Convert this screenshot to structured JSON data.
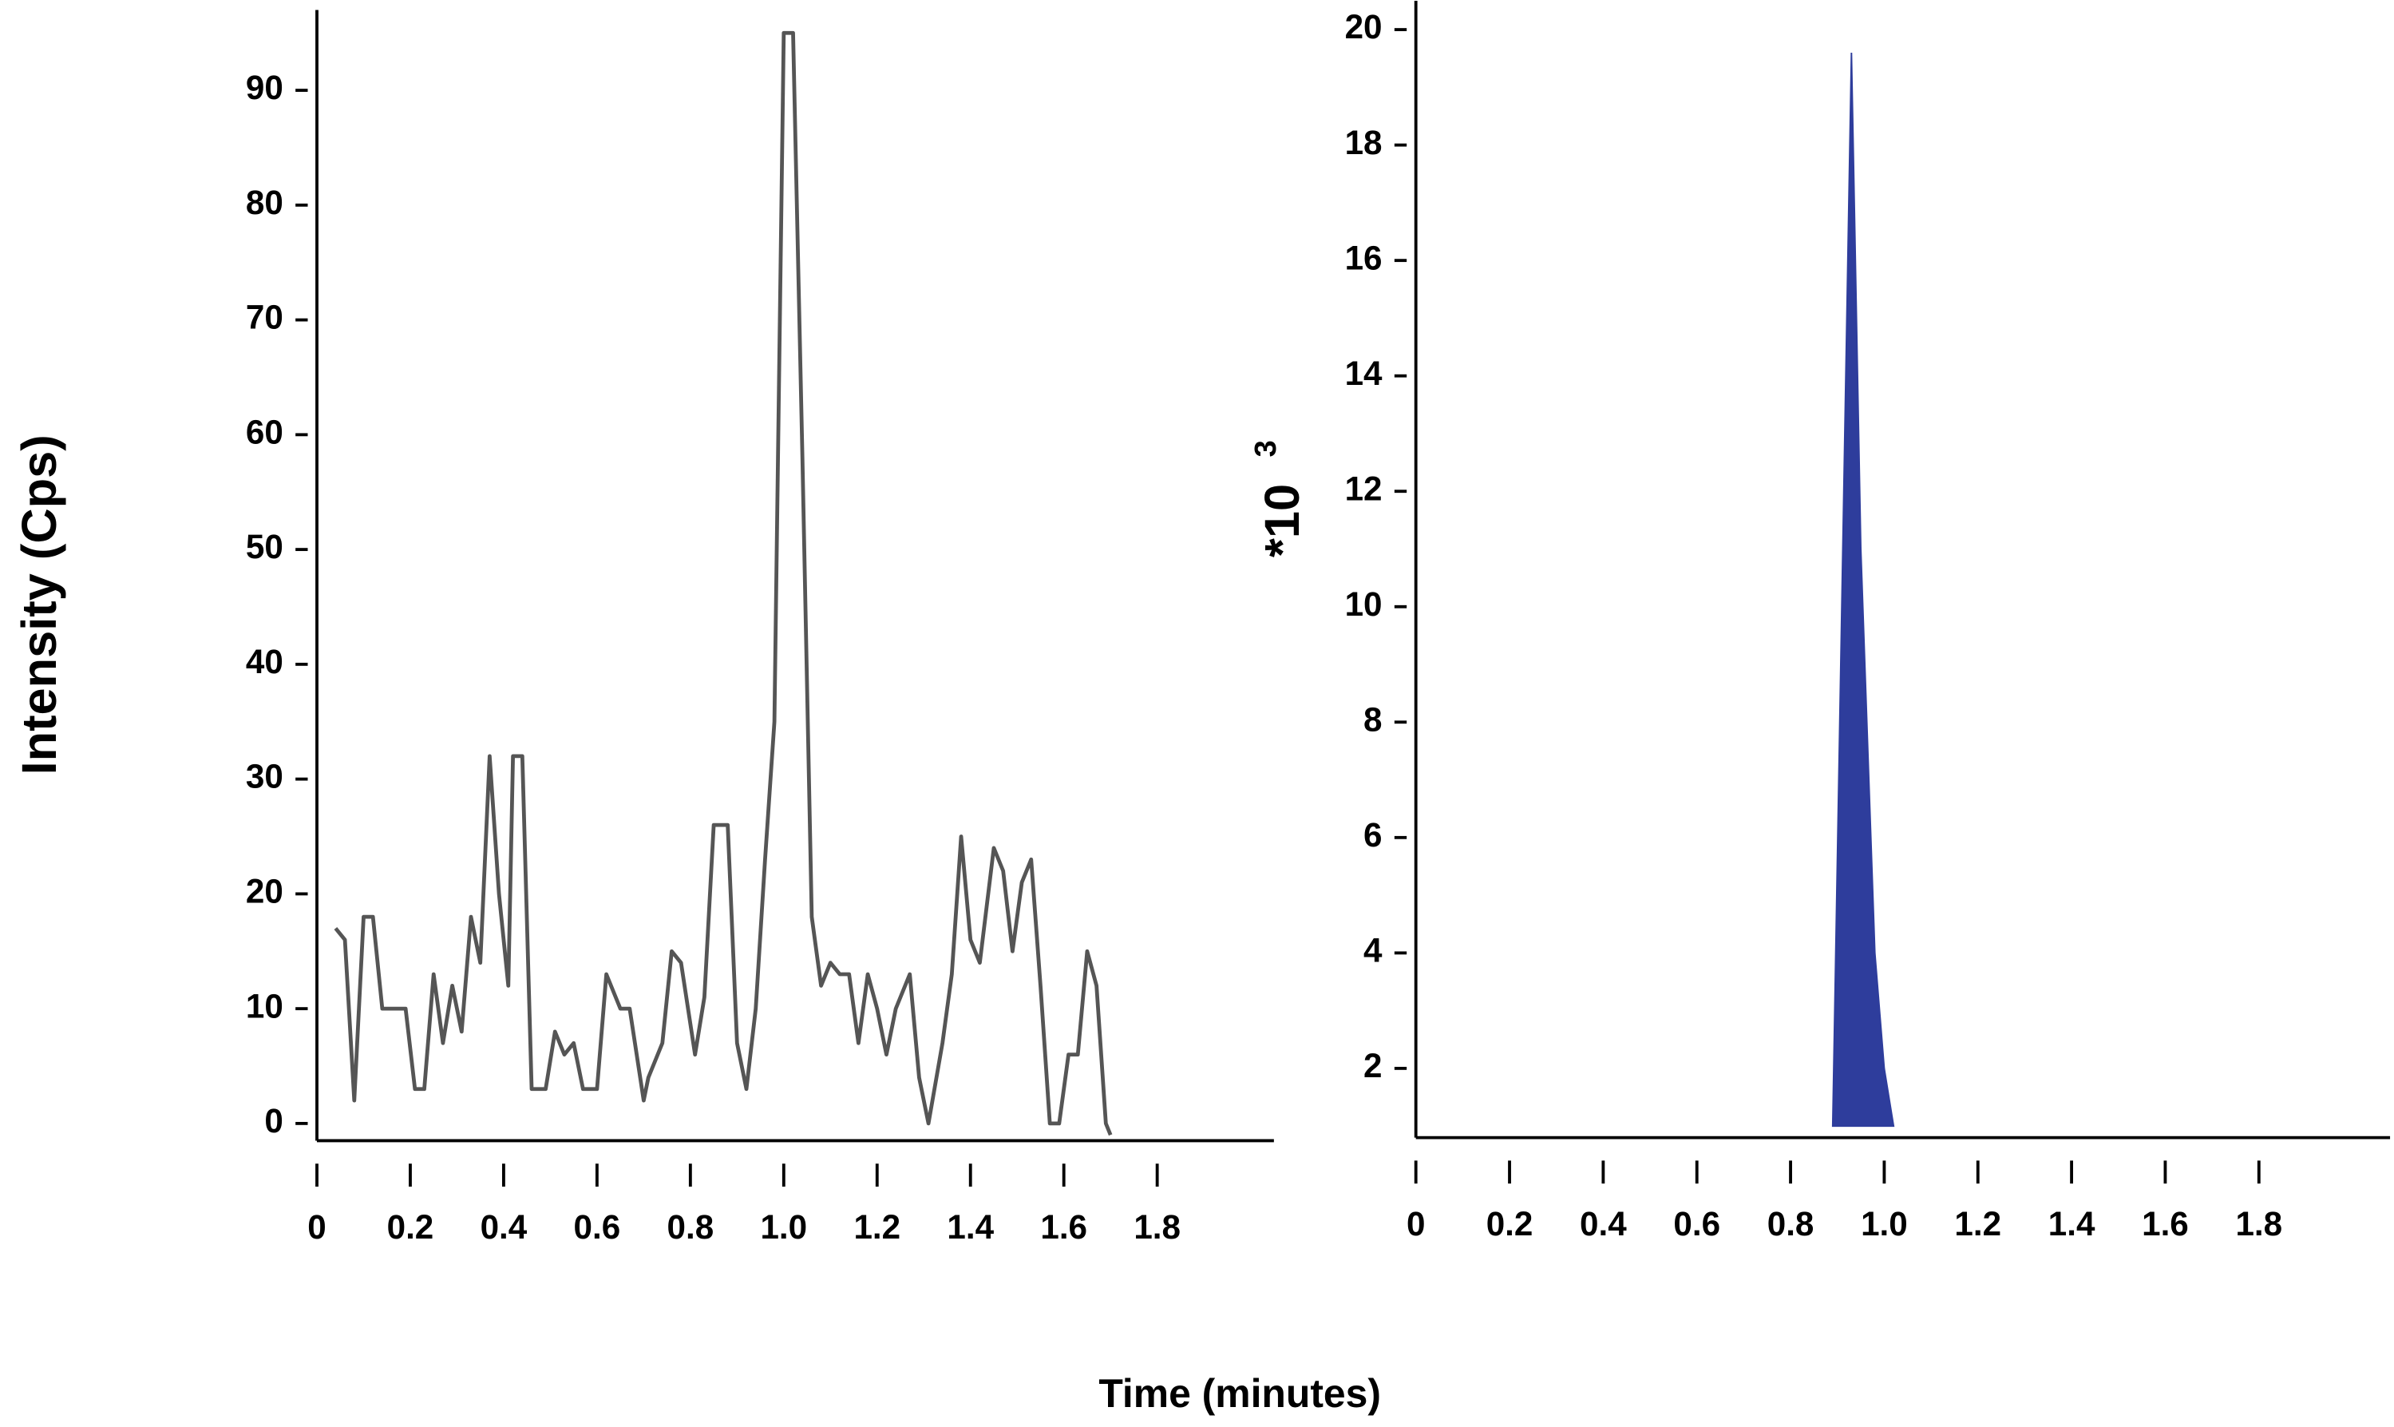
{
  "figure": {
    "ylabel": "Intensity (Cps)",
    "xlabel": "Time (minutes)"
  },
  "chart_data": [
    {
      "type": "line",
      "color": "#555555",
      "x": [
        0.04,
        0.06,
        0.08,
        0.1,
        0.12,
        0.14,
        0.17,
        0.19,
        0.21,
        0.23,
        0.25,
        0.27,
        0.29,
        0.31,
        0.33,
        0.35,
        0.37,
        0.39,
        0.41,
        0.42,
        0.44,
        0.46,
        0.49,
        0.51,
        0.53,
        0.55,
        0.57,
        0.6,
        0.62,
        0.65,
        0.67,
        0.7,
        0.71,
        0.74,
        0.76,
        0.78,
        0.81,
        0.83,
        0.85,
        0.88,
        0.9,
        0.92,
        0.94,
        0.96,
        0.98,
        1.0,
        1.02,
        1.04,
        1.06,
        1.08,
        1.1,
        1.12,
        1.14,
        1.16,
        1.18,
        1.2,
        1.22,
        1.24,
        1.27,
        1.29,
        1.31,
        1.34,
        1.36,
        1.38,
        1.4,
        1.42,
        1.45,
        1.47,
        1.49,
        1.51,
        1.53,
        1.55,
        1.57,
        1.59,
        1.61,
        1.63,
        1.65,
        1.67,
        1.69,
        1.7
      ],
      "values": [
        17,
        16,
        2,
        18,
        18,
        10,
        10,
        10,
        3,
        3,
        13,
        7,
        12,
        8,
        18,
        14,
        32,
        20,
        12,
        32,
        32,
        3,
        3,
        8,
        6,
        7,
        3,
        3,
        13,
        10,
        10,
        2,
        4,
        7,
        15,
        14,
        6,
        11,
        26,
        26,
        7,
        3,
        10,
        23,
        35,
        95,
        95,
        58,
        18,
        12,
        14,
        13,
        13,
        7,
        13,
        10,
        6,
        10,
        13,
        4,
        0,
        7,
        13,
        25,
        16,
        14,
        24,
        22,
        15,
        21,
        23,
        12,
        0,
        0,
        6,
        6,
        15,
        12,
        0,
        -1
      ],
      "xlim": [
        0,
        2.05
      ],
      "ylim": [
        -1.5,
        97
      ],
      "xticks": [
        0,
        0.2,
        0.4,
        0.6,
        0.8,
        {
          "value": 1,
          "label": "1.0"
        },
        1.2,
        1.4,
        1.6,
        1.8
      ],
      "yticks": [
        0,
        10,
        20,
        30,
        40,
        50,
        60,
        70,
        80,
        90
      ]
    },
    {
      "type": "area",
      "color": "#2e3d9c",
      "ylabel": "*10",
      "ylabel_exponent": "3",
      "x": [
        0.89,
        0.93,
        0.95,
        0.98,
        1.0,
        1.02
      ],
      "values": [
        1,
        19.6,
        11,
        4,
        2,
        1
      ],
      "xlim": [
        0,
        2.08
      ],
      "ylim": [
        0.8,
        20.5
      ],
      "xticks": [
        0,
        0.2,
        0.4,
        0.6,
        0.8,
        {
          "value": 1,
          "label": "1.0"
        },
        1.2,
        1.4,
        1.6,
        1.8
      ],
      "yticks": [
        2,
        4,
        6,
        8,
        10,
        12,
        14,
        16,
        18,
        20
      ]
    }
  ]
}
